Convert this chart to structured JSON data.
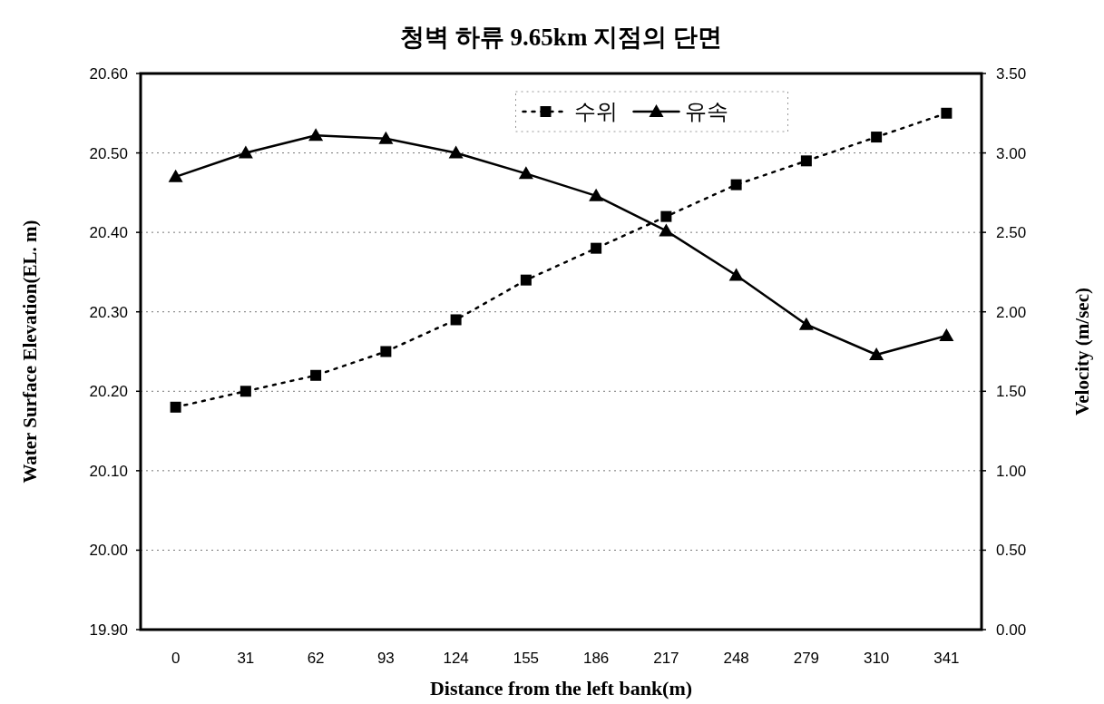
{
  "chart_data": {
    "type": "line",
    "title": "청벽 하류 9.65km 지점의 단면",
    "xlabel": "Distance from the left bank(m)",
    "ylabel": "Water Surface Elevation(EL. m)",
    "y2label": "Velocity (m/sec)",
    "categories": [
      "0",
      "31",
      "62",
      "93",
      "124",
      "155",
      "186",
      "217",
      "248",
      "279",
      "310",
      "341"
    ],
    "series": [
      {
        "name": "수위",
        "color": "#000000",
        "marker": "square",
        "line_style": "dotted",
        "values": [
          20.18,
          20.2,
          20.22,
          20.25,
          20.29,
          20.34,
          20.38,
          20.42,
          20.46,
          20.49,
          20.52,
          20.55
        ]
      },
      {
        "name": "유속",
        "color": "#000000",
        "marker": "triangle",
        "line_style": "solid",
        "axis": "y2",
        "values": [
          2.85,
          3.0,
          3.11,
          3.09,
          3.0,
          2.87,
          2.73,
          2.51,
          2.23,
          1.92,
          1.73,
          1.85
        ]
      }
    ],
    "ylim": [
      19.9,
      20.6
    ],
    "yticks": [
      {
        "value": 19.9,
        "label": "19.90"
      },
      {
        "value": 20.0,
        "label": "20.00"
      },
      {
        "value": 20.1,
        "label": "20.10"
      },
      {
        "value": 20.2,
        "label": "20.20"
      },
      {
        "value": 20.3,
        "label": "20.30"
      },
      {
        "value": 20.4,
        "label": "20.40"
      },
      {
        "value": 20.5,
        "label": "20.50"
      },
      {
        "value": 20.6,
        "label": "20.60"
      }
    ],
    "y2lim": [
      0,
      3.5
    ],
    "y2ticks": [
      {
        "value": 0,
        "label": "0.00"
      },
      {
        "value": 0.5,
        "label": "0.50"
      },
      {
        "value": 1.0,
        "label": "1.00"
      },
      {
        "value": 1.5,
        "label": "1.50"
      },
      {
        "value": 2.0,
        "label": "2.00"
      },
      {
        "value": 2.5,
        "label": "2.50"
      },
      {
        "value": 3.0,
        "label": "3.00"
      },
      {
        "value": 3.5,
        "label": "3.50"
      }
    ],
    "grid": "y",
    "legend": "top"
  }
}
